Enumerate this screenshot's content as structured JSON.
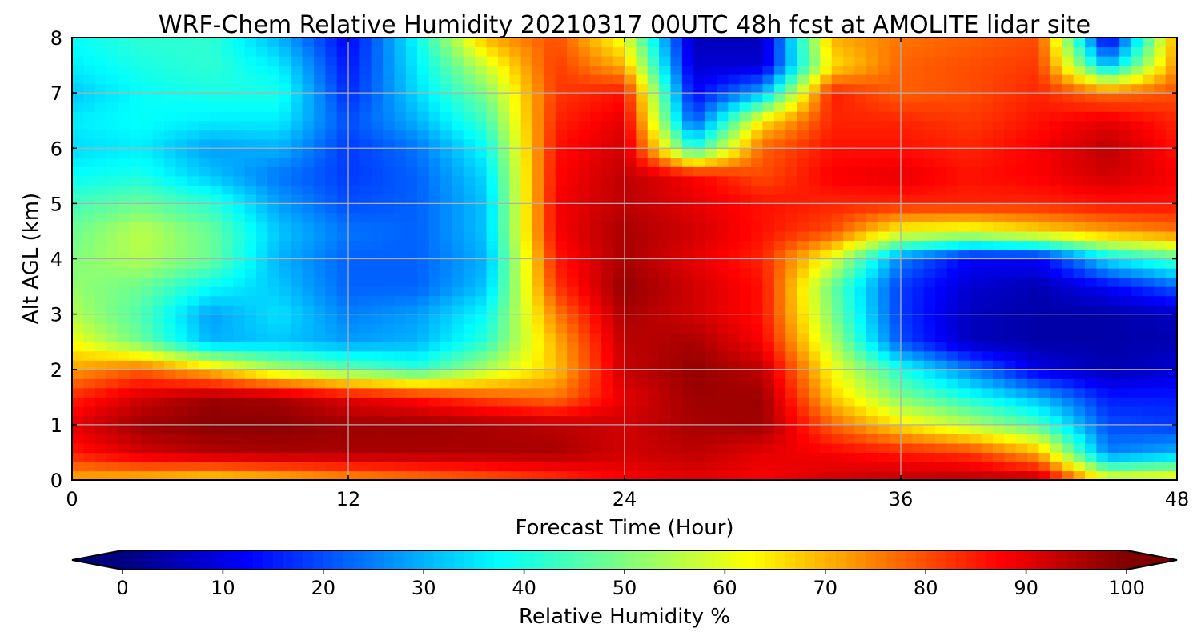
{
  "chart_data": {
    "type": "heatmap",
    "title": "WRF-Chem Relative Humidity 20210317 00UTC 48h fcst at AMOLITE lidar site",
    "xlabel": "Forecast Time (Hour)",
    "ylabel": "Alt AGL (km)",
    "xlim": [
      0,
      48
    ],
    "ylim": [
      0,
      8
    ],
    "x_ticks": [
      "0",
      "12",
      "24",
      "36",
      "48"
    ],
    "y_ticks": [
      "0",
      "1",
      "2",
      "3",
      "4",
      "5",
      "6",
      "7",
      "8"
    ],
    "grid": true,
    "colorbar": {
      "label": "Relative Humidity %",
      "orientation": "horizontal",
      "placement": "bottom",
      "range": [
        0,
        100
      ],
      "extend": "both",
      "colormap": "jet",
      "ticks": [
        "0",
        "10",
        "20",
        "30",
        "40",
        "50",
        "60",
        "70",
        "80",
        "90",
        "100"
      ]
    },
    "x": [
      0,
      3,
      6,
      9,
      12,
      15,
      18,
      21,
      24,
      27,
      30,
      33,
      36,
      39,
      42,
      45,
      48
    ],
    "y": [
      0,
      0.5,
      1,
      1.5,
      2,
      2.5,
      3,
      3.5,
      4,
      4.5,
      5,
      5.5,
      6,
      6.5,
      7,
      7.5,
      8
    ],
    "z": [
      [
        70,
        68,
        65,
        68,
        72,
        75,
        78,
        82,
        88,
        90,
        88,
        92,
        94,
        95,
        95,
        62,
        65
      ],
      [
        85,
        92,
        95,
        96,
        96,
        96,
        96,
        96,
        92,
        94,
        90,
        88,
        85,
        82,
        70,
        25,
        30
      ],
      [
        90,
        97,
        99,
        99,
        97,
        97,
        96,
        94,
        92,
        96,
        97,
        78,
        65,
        55,
        45,
        20,
        18
      ],
      [
        84,
        92,
        97,
        96,
        90,
        86,
        80,
        76,
        90,
        97,
        97,
        68,
        50,
        40,
        30,
        15,
        15
      ],
      [
        72,
        78,
        68,
        55,
        48,
        42,
        55,
        68,
        93,
        98,
        94,
        62,
        40,
        25,
        10,
        5,
        8
      ],
      [
        62,
        48,
        30,
        32,
        28,
        30,
        42,
        70,
        94,
        96,
        88,
        55,
        20,
        6,
        4,
        4,
        5
      ],
      [
        55,
        45,
        28,
        35,
        25,
        28,
        38,
        75,
        96,
        92,
        86,
        50,
        18,
        6,
        4,
        4,
        6
      ],
      [
        52,
        48,
        38,
        32,
        22,
        22,
        32,
        82,
        98,
        92,
        86,
        48,
        18,
        8,
        5,
        12,
        22
      ],
      [
        50,
        55,
        48,
        30,
        22,
        22,
        30,
        85,
        96,
        90,
        84,
        60,
        25,
        12,
        12,
        35,
        45
      ],
      [
        48,
        56,
        48,
        32,
        24,
        22,
        32,
        88,
        96,
        92,
        86,
        80,
        62,
        60,
        66,
        72,
        76
      ],
      [
        44,
        48,
        42,
        28,
        20,
        22,
        32,
        88,
        94,
        90,
        86,
        84,
        84,
        84,
        84,
        86,
        86
      ],
      [
        38,
        40,
        32,
        24,
        18,
        22,
        34,
        87,
        94,
        88,
        80,
        88,
        90,
        86,
        88,
        92,
        88
      ],
      [
        34,
        36,
        28,
        30,
        18,
        24,
        38,
        86,
        92,
        40,
        78,
        86,
        86,
        84,
        88,
        94,
        86
      ],
      [
        36,
        38,
        36,
        36,
        20,
        30,
        44,
        84,
        90,
        20,
        65,
        84,
        84,
        82,
        86,
        90,
        84
      ],
      [
        32,
        38,
        40,
        40,
        16,
        34,
        50,
        82,
        86,
        12,
        30,
        85,
        78,
        80,
        84,
        76,
        80
      ],
      [
        36,
        40,
        42,
        36,
        14,
        36,
        58,
        82,
        70,
        8,
        8,
        65,
        78,
        80,
        82,
        30,
        74
      ],
      [
        38,
        42,
        42,
        30,
        12,
        38,
        70,
        80,
        60,
        6,
        6,
        70,
        76,
        78,
        80,
        8,
        72
      ]
    ]
  }
}
